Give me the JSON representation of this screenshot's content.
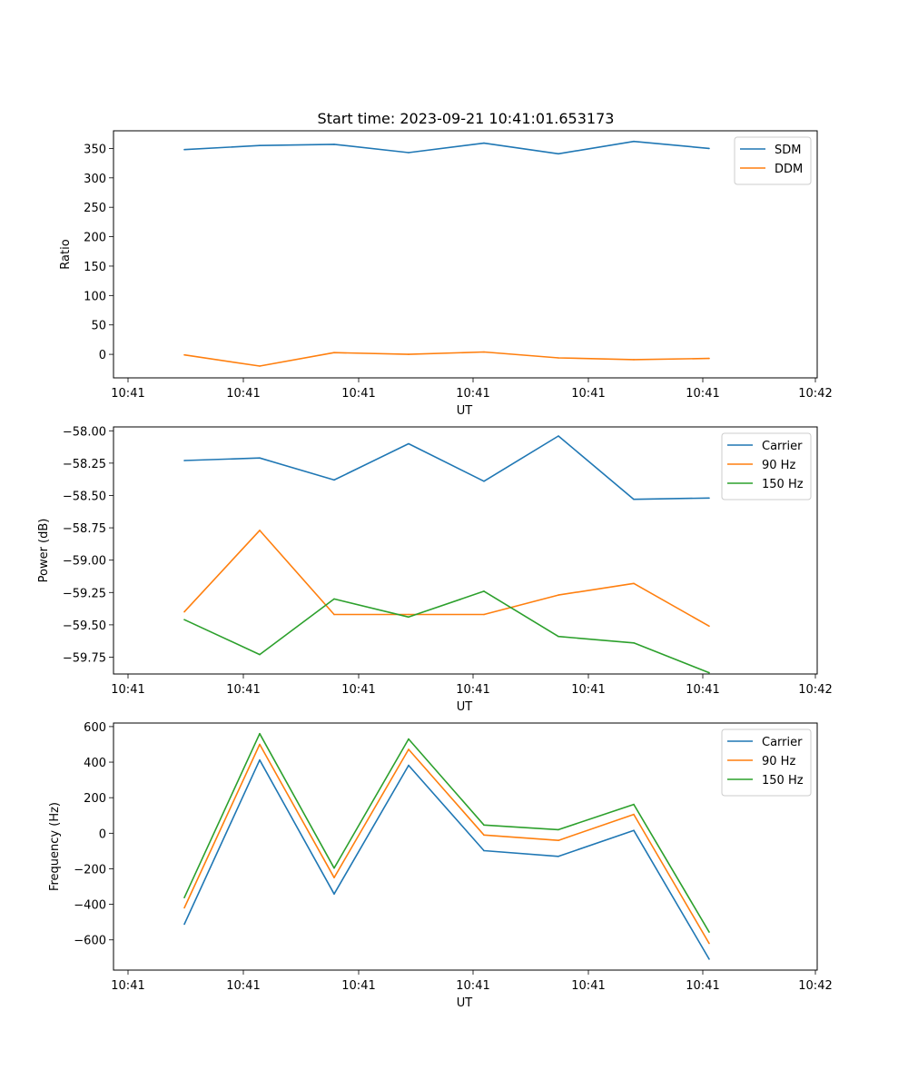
{
  "title": "Start time: 2023-09-21 10:41:01.653173",
  "chart_data": [
    {
      "type": "line",
      "xlabel": "UT",
      "ylabel": "Ratio",
      "xticks": [
        "10:41",
        "10:41",
        "10:41",
        "10:41",
        "10:41",
        "10:41",
        "10:42"
      ],
      "yticks": [
        0,
        50,
        100,
        150,
        200,
        250,
        300,
        350
      ],
      "ylim": [
        -40,
        380
      ],
      "legend_position": "top-right",
      "series": [
        {
          "name": "SDM",
          "color": "#1f77b4",
          "values": [
            348,
            355,
            357,
            343,
            359,
            341,
            362,
            350
          ]
        },
        {
          "name": "DDM",
          "color": "#ff7f0e",
          "values": [
            -1,
            -20,
            3,
            0,
            4,
            -6,
            -9,
            -7
          ]
        }
      ]
    },
    {
      "type": "line",
      "xlabel": "UT",
      "ylabel": "Power (dB)",
      "xticks": [
        "10:41",
        "10:41",
        "10:41",
        "10:41",
        "10:41",
        "10:41",
        "10:42"
      ],
      "yticks": [
        -59.75,
        -59.5,
        -59.25,
        -59.0,
        -58.75,
        -58.5,
        -58.25,
        -58.0
      ],
      "ytick_labels": [
        "−59.75",
        "−59.50",
        "−59.25",
        "−59.00",
        "−58.75",
        "−58.50",
        "−58.25",
        "−58.00"
      ],
      "ylim": [
        -59.88,
        -57.97
      ],
      "legend_position": "top-right",
      "series": [
        {
          "name": "Carrier",
          "color": "#1f77b4",
          "values": [
            -58.23,
            -58.21,
            -58.38,
            -58.1,
            -58.39,
            -58.04,
            -58.53,
            -58.52
          ]
        },
        {
          "name": "90 Hz",
          "color": "#ff7f0e",
          "values": [
            -59.4,
            -58.77,
            -59.42,
            -59.42,
            -59.42,
            -59.27,
            -59.18,
            -59.51
          ]
        },
        {
          "name": "150 Hz",
          "color": "#2ca02c",
          "values": [
            -59.46,
            -59.73,
            -59.3,
            -59.44,
            -59.24,
            -59.59,
            -59.64,
            -59.87
          ]
        }
      ]
    },
    {
      "type": "line",
      "xlabel": "UT",
      "ylabel": "Frequency (Hz)",
      "xticks": [
        "10:41",
        "10:41",
        "10:41",
        "10:41",
        "10:41",
        "10:41",
        "10:42"
      ],
      "yticks": [
        -600,
        -400,
        -200,
        0,
        200,
        400,
        600
      ],
      "ytick_labels": [
        "−600",
        "−400",
        "−200",
        "0",
        "200",
        "400",
        "600"
      ],
      "ylim": [
        -770,
        620
      ],
      "legend_position": "top-right",
      "series": [
        {
          "name": "Carrier",
          "color": "#1f77b4",
          "values": [
            -512,
            412,
            -342,
            382,
            -98,
            -130,
            16,
            -708
          ]
        },
        {
          "name": "90 Hz",
          "color": "#ff7f0e",
          "values": [
            -420,
            500,
            -250,
            472,
            -10,
            -40,
            106,
            -620
          ]
        },
        {
          "name": "150 Hz",
          "color": "#2ca02c",
          "values": [
            -362,
            560,
            -196,
            530,
            46,
            20,
            162,
            -556
          ]
        }
      ]
    }
  ]
}
